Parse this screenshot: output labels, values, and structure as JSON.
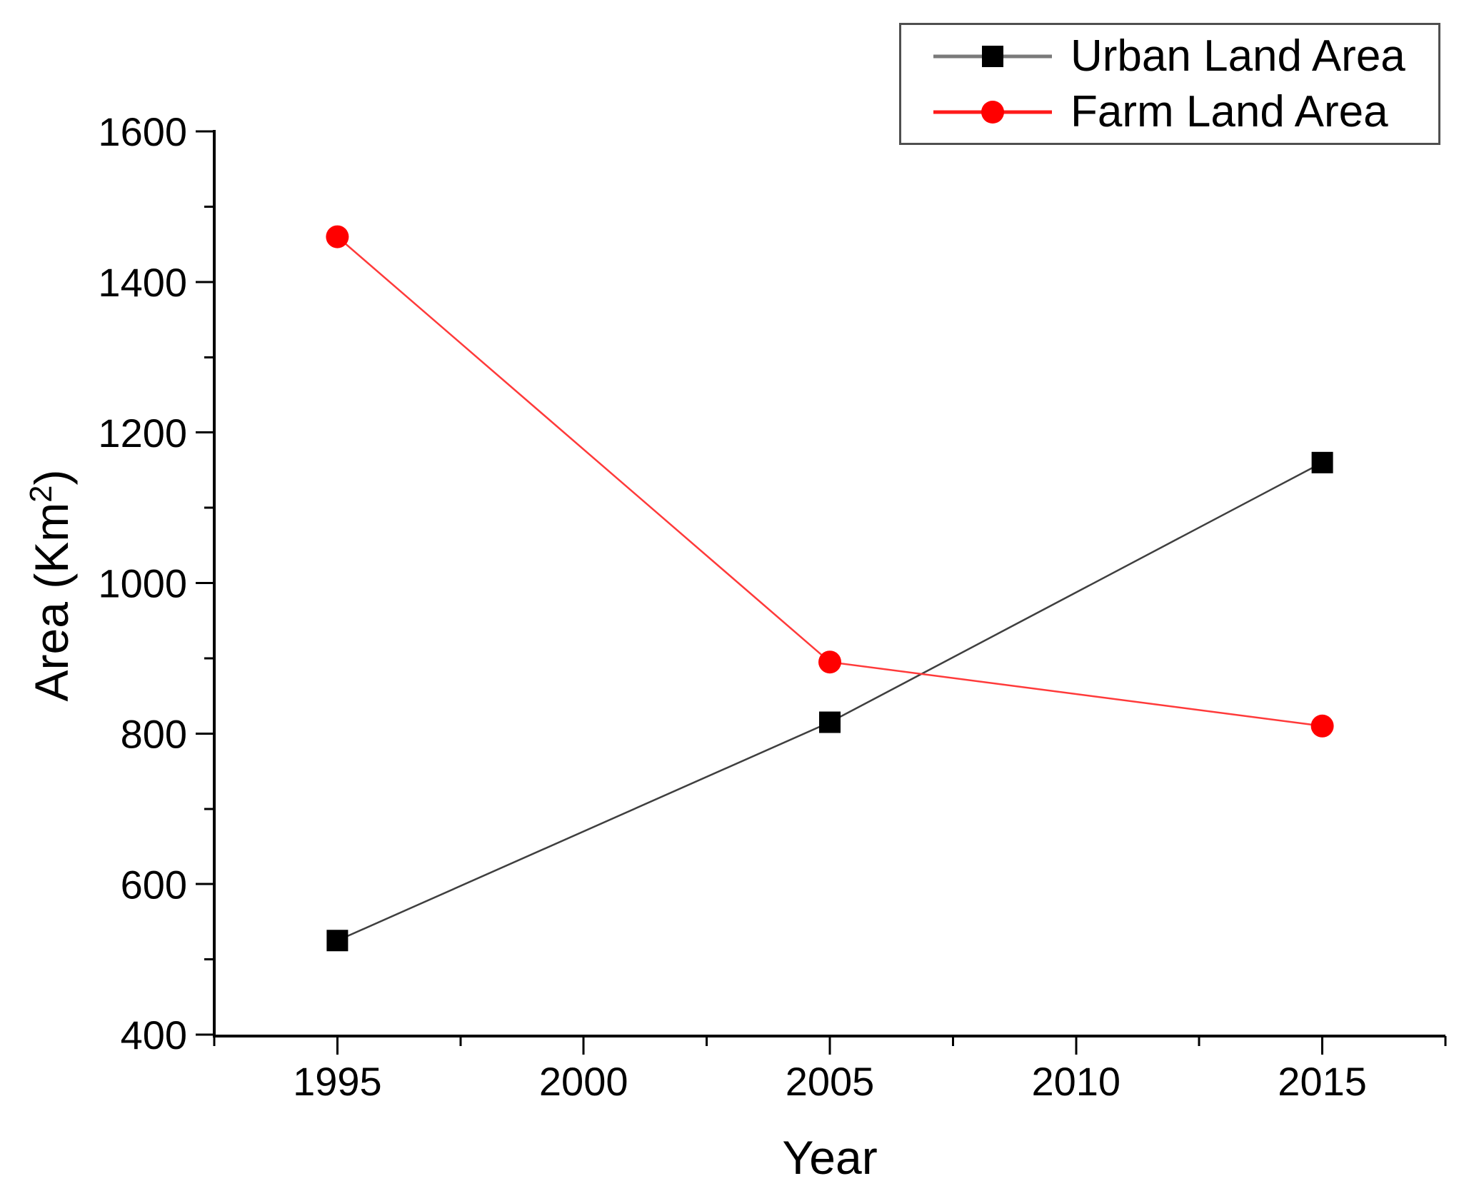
{
  "figure": {
    "background": "#ffffff",
    "axis_color": "#000000",
    "tick_label_color": "#000000",
    "legend_border_color": "#4f4f4f",
    "x_title": "Year",
    "y_title": {
      "prefix": "Area (Km",
      "sup": "2",
      "suffix": ")"
    }
  },
  "chart_data": {
    "type": "line",
    "title": "",
    "xlabel": "Year",
    "ylabel": "Area (Km²)",
    "x": [
      1995,
      2005,
      2015
    ],
    "series": [
      {
        "name": "Urban Land Area",
        "values": [
          525,
          815,
          1160
        ],
        "marker": "square",
        "marker_color": "#000000",
        "line_color": "#3f3f3f",
        "legend_line_color": "#7a7a7a"
      },
      {
        "name": "Farm Land Area",
        "values": [
          1460,
          895,
          810
        ],
        "marker": "circle",
        "marker_color": "#ff0000",
        "line_color": "#ff3a3a",
        "legend_line_color": "#ff1a1a"
      }
    ],
    "xlim": [
      1992.5,
      2017.5
    ],
    "ylim": [
      400,
      1600
    ],
    "x_major_ticks": [
      1995,
      2000,
      2005,
      2010,
      2015
    ],
    "x_minor_ticks": [
      1992.5,
      1997.5,
      2002.5,
      2007.5,
      2012.5,
      2017.5
    ],
    "y_major_ticks": [
      400,
      600,
      800,
      1000,
      1200,
      1400,
      1600
    ],
    "y_minor_ticks": [
      500,
      700,
      900,
      1100,
      1300,
      1500
    ],
    "grid": false,
    "legend_position": "top-right"
  }
}
